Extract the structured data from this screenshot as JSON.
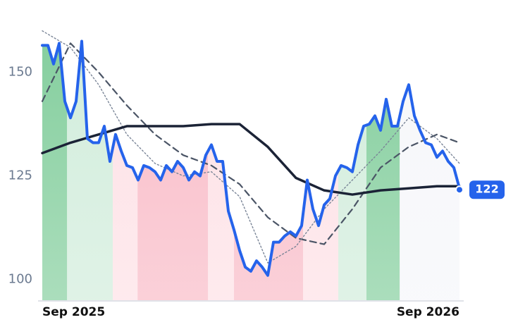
{
  "chart_data": {
    "type": "line",
    "xlim": [
      0,
      74
    ],
    "ylim": [
      95,
      162
    ],
    "xticks": [
      {
        "value": 0,
        "label": "Sep 2025"
      },
      {
        "value": 74,
        "label": "Sep 2026"
      }
    ],
    "yticks": [
      100,
      125,
      150
    ],
    "bands": [
      {
        "x0": 0,
        "x1": 4.4,
        "color": "#86cf9f"
      },
      {
        "x0": 4.4,
        "x1": 12.5,
        "color": "#d2eddc"
      },
      {
        "x0": 12.5,
        "x1": 16.9,
        "color": "#fde1e6"
      },
      {
        "x0": 16.9,
        "x1": 29.4,
        "color": "#f9bcc8"
      },
      {
        "x0": 29.4,
        "x1": 34,
        "color": "#fde1e6"
      },
      {
        "x0": 34,
        "x1": 46.25,
        "color": "#f9bcc8"
      },
      {
        "x0": 46.25,
        "x1": 52.5,
        "color": "#fde1e6"
      },
      {
        "x0": 52.5,
        "x1": 57.5,
        "color": "#d2eddc"
      },
      {
        "x0": 57.5,
        "x1": 63.4,
        "color": "#86cf9f"
      },
      {
        "x0": 63.4,
        "x1": 74,
        "color": "#f6f7fa"
      }
    ],
    "series": [
      {
        "color": "#2563eb",
        "width": 4,
        "dash": "none",
        "x": [
          0,
          1,
          2,
          3,
          4,
          5,
          6,
          7,
          8,
          9,
          10,
          11,
          12,
          13,
          14,
          15,
          16,
          17,
          18,
          19,
          20,
          21,
          22,
          23,
          24,
          25,
          26,
          27,
          28,
          29,
          30,
          31,
          32,
          33,
          34,
          35,
          36,
          37,
          38,
          39,
          40,
          41,
          42,
          43,
          44,
          45,
          46,
          47,
          48,
          49,
          50,
          51,
          52,
          53,
          54,
          55,
          56,
          57,
          58,
          59,
          60,
          61,
          62,
          63,
          64,
          65,
          66,
          67,
          68,
          69,
          70,
          71,
          72,
          73,
          74
        ],
        "values": [
          156.5,
          156.5,
          152,
          157,
          143,
          139,
          143,
          157.5,
          134,
          133,
          133,
          137,
          128.5,
          135,
          131,
          127.5,
          127,
          124,
          127.5,
          127,
          126,
          124,
          127.5,
          126,
          128.5,
          127,
          124,
          126,
          125,
          130,
          132.5,
          128.5,
          128.5,
          116.5,
          112,
          107,
          103,
          102,
          104.5,
          103,
          101,
          109,
          109,
          110.5,
          111.5,
          110.5,
          113,
          124,
          117,
          113,
          118,
          119.5,
          125,
          127.5,
          127,
          126,
          132.5,
          137,
          137.5,
          139.5,
          136,
          143.5,
          137,
          137,
          143,
          147,
          139.5,
          136,
          133,
          132.5,
          129.5,
          131,
          128.5,
          127,
          122
        ]
      },
      {
        "color": "#4b5566",
        "width": 2.2,
        "dash": "9 6",
        "x": [
          0,
          5,
          10,
          15,
          20,
          25,
          30,
          35,
          40,
          45,
          50,
          55,
          60,
          65,
          70,
          74
        ],
        "values": [
          143,
          157,
          150,
          142,
          135,
          130,
          127.5,
          123,
          115,
          110,
          108.5,
          117,
          127,
          132,
          135,
          133
        ]
      },
      {
        "color": "#7a8597",
        "width": 1.4,
        "dash": "2 3",
        "x": [
          0,
          5,
          10,
          15,
          20,
          25,
          30,
          35,
          40,
          45,
          50,
          55,
          60,
          65,
          70,
          74
        ],
        "values": [
          160,
          156,
          147,
          135,
          128,
          125,
          126,
          120,
          104,
          108,
          117,
          124,
          131,
          139,
          134,
          128
        ]
      },
      {
        "color": "#1b2336",
        "width": 3.5,
        "dash": "none",
        "x": [
          0,
          5,
          10,
          15,
          20,
          25,
          30,
          35,
          40,
          45,
          50,
          55,
          60,
          65,
          70,
          74
        ],
        "values": [
          130.5,
          133,
          135,
          137,
          137,
          137,
          137.5,
          137.5,
          132,
          124.5,
          121.5,
          120.5,
          121.5,
          122,
          122.5,
          122.5
        ]
      }
    ]
  }
}
